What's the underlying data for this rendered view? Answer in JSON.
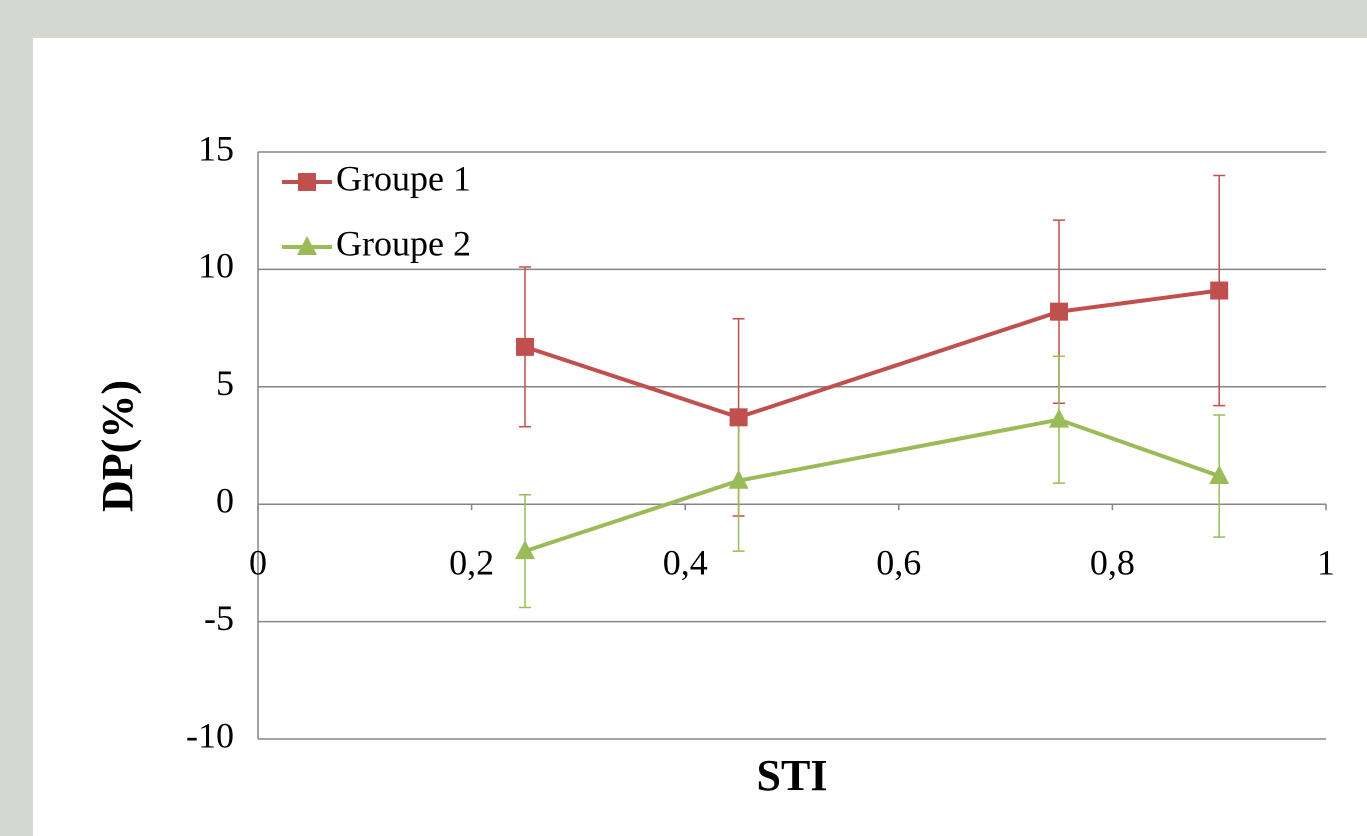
{
  "chart_data": {
    "type": "line",
    "x_label": "STI",
    "y_label": "DP(%)",
    "x": [
      0.25,
      0.45,
      0.75,
      0.9
    ],
    "series": [
      {
        "name": "Groupe 1",
        "color": "#c0504d",
        "marker": "square",
        "values": [
          6.7,
          3.7,
          8.2,
          9.1
        ],
        "errors": [
          3.4,
          4.2,
          3.9,
          4.9
        ]
      },
      {
        "name": "Groupe 2",
        "color": "#9bbb59",
        "marker": "triangle",
        "values": [
          -2.0,
          1.0,
          3.6,
          1.2
        ],
        "errors": [
          2.4,
          3.0,
          2.7,
          2.6
        ]
      }
    ],
    "xlim": [
      0,
      1
    ],
    "xticks": [
      0,
      {
        "value": 0.2,
        "label": "0,2"
      },
      {
        "value": 0.4,
        "label": "0,4"
      },
      {
        "value": 0.6,
        "label": "0,6"
      },
      {
        "value": 0.8,
        "label": "0,8"
      },
      1
    ],
    "ylim": [
      -10,
      15
    ],
    "yticks": [
      -10,
      -5,
      0,
      5,
      10,
      15
    ],
    "grid": true,
    "legend": "top-left"
  }
}
